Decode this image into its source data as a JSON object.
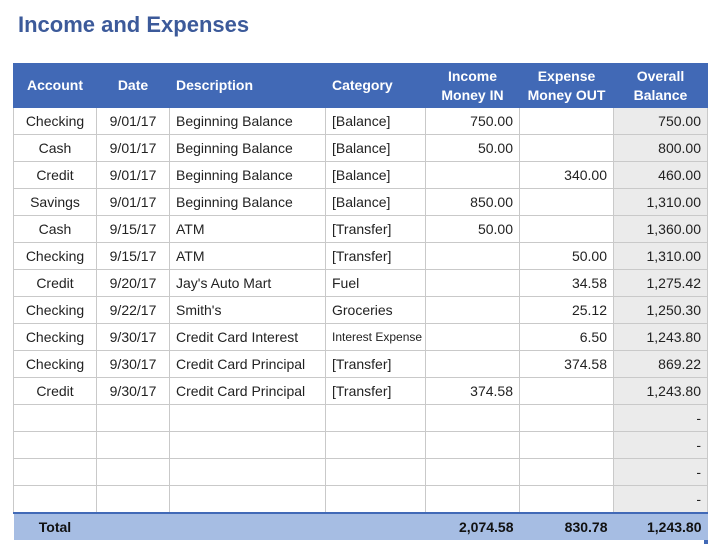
{
  "title": "Income and Expenses",
  "headers": {
    "account": "Account",
    "date": "Date",
    "description": "Description",
    "category": "Category",
    "income_line1": "Income",
    "income_line2": "Money IN",
    "expense_line1": "Expense",
    "expense_line2": "Money OUT",
    "balance_line1": "Overall",
    "balance_line2": "Balance"
  },
  "rows": [
    {
      "account": "Checking",
      "date": "9/01/17",
      "description": "Beginning Balance",
      "category": "[Balance]",
      "money_in": "750.00",
      "money_out": "",
      "balance": "750.00"
    },
    {
      "account": "Cash",
      "date": "9/01/17",
      "description": "Beginning Balance",
      "category": "[Balance]",
      "money_in": "50.00",
      "money_out": "",
      "balance": "800.00"
    },
    {
      "account": "Credit",
      "date": "9/01/17",
      "description": "Beginning Balance",
      "category": "[Balance]",
      "money_in": "",
      "money_out": "340.00",
      "balance": "460.00"
    },
    {
      "account": "Savings",
      "date": "9/01/17",
      "description": "Beginning Balance",
      "category": "[Balance]",
      "money_in": "850.00",
      "money_out": "",
      "balance": "1,310.00"
    },
    {
      "account": "Cash",
      "date": "9/15/17",
      "description": "ATM",
      "category": "[Transfer]",
      "money_in": "50.00",
      "money_out": "",
      "balance": "1,360.00"
    },
    {
      "account": "Checking",
      "date": "9/15/17",
      "description": "ATM",
      "category": "[Transfer]",
      "money_in": "",
      "money_out": "50.00",
      "balance": "1,310.00"
    },
    {
      "account": "Credit",
      "date": "9/20/17",
      "description": "Jay's Auto Mart",
      "category": "Fuel",
      "money_in": "",
      "money_out": "34.58",
      "balance": "1,275.42"
    },
    {
      "account": "Checking",
      "date": "9/22/17",
      "description": "Smith's",
      "category": "Groceries",
      "money_in": "",
      "money_out": "25.12",
      "balance": "1,250.30"
    },
    {
      "account": "Checking",
      "date": "9/30/17",
      "description": "Credit Card Interest",
      "category": "Interest Expense",
      "money_in": "",
      "money_out": "6.50",
      "balance": "1,243.80"
    },
    {
      "account": "Checking",
      "date": "9/30/17",
      "description": "Credit Card Principal",
      "category": "[Transfer]",
      "money_in": "",
      "money_out": "374.58",
      "balance": "869.22"
    },
    {
      "account": "Credit",
      "date": "9/30/17",
      "description": "Credit Card Principal",
      "category": "[Transfer]",
      "money_in": "374.58",
      "money_out": "",
      "balance": "1,243.80"
    },
    {
      "account": "",
      "date": "",
      "description": "",
      "category": "",
      "money_in": "",
      "money_out": "",
      "balance": "-"
    },
    {
      "account": "",
      "date": "",
      "description": "",
      "category": "",
      "money_in": "",
      "money_out": "",
      "balance": "-"
    },
    {
      "account": "",
      "date": "",
      "description": "",
      "category": "",
      "money_in": "",
      "money_out": "",
      "balance": "-"
    },
    {
      "account": "",
      "date": "",
      "description": "",
      "category": "",
      "money_in": "",
      "money_out": "",
      "balance": "-"
    }
  ],
  "total": {
    "label": "Total",
    "money_in": "2,074.58",
    "money_out": "830.78",
    "balance": "1,243.80"
  },
  "colors": {
    "header_bg": "#4169b6",
    "title": "#3c5a9a",
    "total_bg": "#a6bde3",
    "balance_bg": "#ebebeb"
  }
}
